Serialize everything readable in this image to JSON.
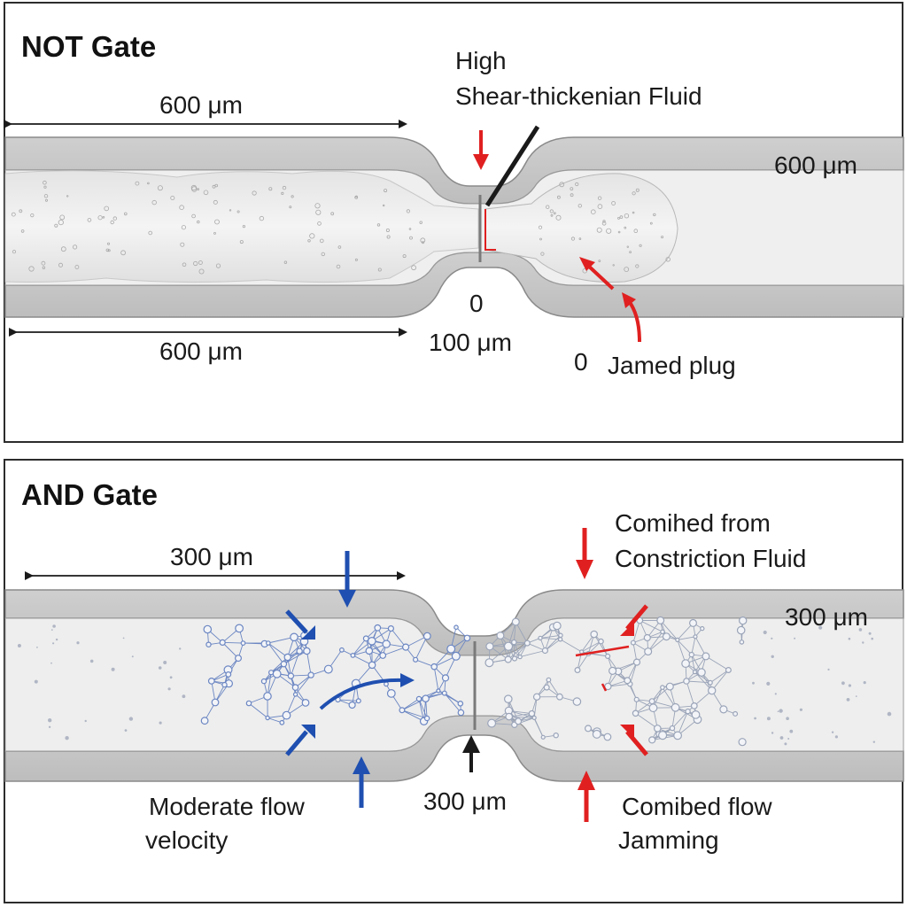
{
  "not_gate": {
    "title": "NOT Gate",
    "label_high_line1": "High",
    "label_high_line2": "Shear-thickenian Fluid",
    "dim_top_left": "600 μm",
    "dim_bottom_left": "600 μm",
    "dim_right": "600 μm",
    "constriction_zero": "0",
    "constriction_width": "100 μm",
    "jammed_zero": "0",
    "jammed_plug": "Jamed plug",
    "arrow_color": "#e02020"
  },
  "and_gate": {
    "title": "AND Gate",
    "dim_top_left": "300 μm",
    "dim_right": "300 μm",
    "constriction_width": "300 μm",
    "combined_line1": "Comihed from",
    "combined_line2": "Constriction Fluid",
    "moderate_line1": "Moderate flow",
    "moderate_line2": "velocity",
    "comibed_line1": "Comibed flow",
    "comibed_line2": "Jamming",
    "blue_color": "#1f4fb0",
    "red_color": "#e02020"
  }
}
